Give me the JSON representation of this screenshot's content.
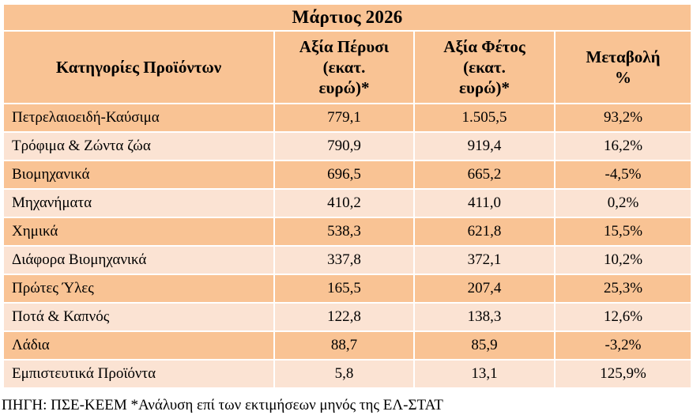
{
  "table": {
    "title": "Μάρτιος  2026",
    "headers": {
      "category": "Κατηγορίες Προϊόντων",
      "last_year_lines": [
        "Αξία Πέρυσι",
        "(εκατ.",
        "ευρώ)*"
      ],
      "this_year_lines": [
        "Αξία Φέτος",
        "(εκατ.",
        "ευρώ)*"
      ],
      "change_lines": [
        "Μεταβολή",
        "%"
      ]
    },
    "rows": [
      {
        "category": "Πετρελαιοειδή-Καύσιμα",
        "last_year": "779,1",
        "this_year": "1.505,5",
        "change": "93,2%"
      },
      {
        "category": "Τρόφιμα & Ζώντα ζώα",
        "last_year": "790,9",
        "this_year": "919,4",
        "change": "16,2%"
      },
      {
        "category": "Βιομηχανικά",
        "last_year": "696,5",
        "this_year": "665,2",
        "change": "-4,5%"
      },
      {
        "category": "Μηχανήματα",
        "last_year": "410,2",
        "this_year": "411,0",
        "change": "0,2%"
      },
      {
        "category": "Χημικά",
        "last_year": "538,3",
        "this_year": "621,8",
        "change": "15,5%"
      },
      {
        "category": "Διάφορα Βιομηχανικά",
        "last_year": "337,8",
        "this_year": "372,1",
        "change": "10,2%"
      },
      {
        "category": "Πρώτες Ύλες",
        "last_year": "165,5",
        "this_year": "207,4",
        "change": "25,3%"
      },
      {
        "category": "Ποτά & Καπνός",
        "last_year": "122,8",
        "this_year": "138,3",
        "change": "12,6%"
      },
      {
        "category": "Λάδια",
        "last_year": "88,7",
        "this_year": "85,9",
        "change": "-3,2%"
      },
      {
        "category": "Εμπιστευτικά Προϊόντα",
        "last_year": "5,8",
        "this_year": "13,1",
        "change": "125,9%"
      }
    ]
  },
  "source_note": "ΠΗΓΗ: ΠΣΕ-ΚΕΕΜ *Ανάλυση επί των εκτιμήσεων μηνός της ΕΛ-ΣΤΑΤ",
  "colors": {
    "header_fill": "#f9c394",
    "row_dark": "#f9c394",
    "row_light": "#fbe3d3",
    "border": "#ffffff"
  }
}
